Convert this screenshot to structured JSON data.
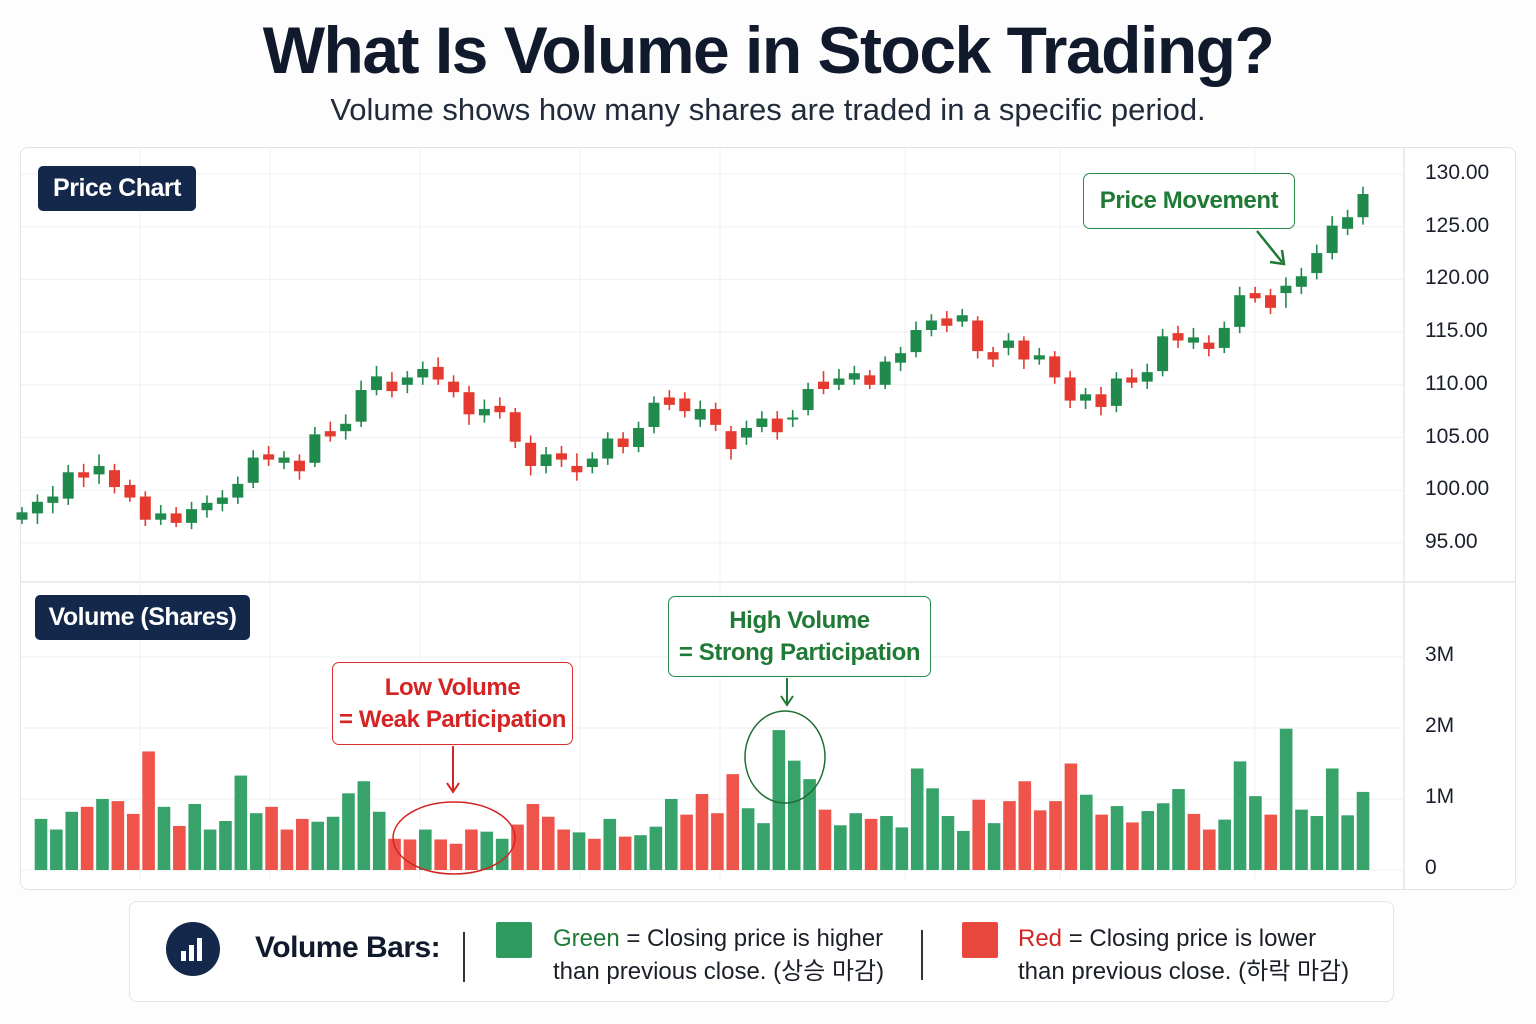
{
  "header": {
    "title": "What Is Volume in Stock Trading?",
    "subtitle": "Volume shows how many shares are traded in a specific period."
  },
  "colors": {
    "up": "#1f8a4c",
    "down": "#e53a30",
    "up_volume": "#37a26a",
    "down_volume": "#ee544a",
    "label_bg": "#13284b"
  },
  "chart_data": [
    {
      "type": "candlestick",
      "label": "Price Chart",
      "yticks": [
        "130.00",
        "125.00",
        "120.00",
        "115.00",
        "110.00",
        "105.00",
        "100.00",
        "95.00"
      ],
      "ylim": [
        93,
        131
      ],
      "grid": true,
      "annotation": "Price Movement",
      "ohlc": [
        [
          97.2,
          98.4,
          96.8,
          97.9
        ],
        [
          97.8,
          99.6,
          96.8,
          98.9
        ],
        [
          98.8,
          100.4,
          97.8,
          99.4
        ],
        [
          99.2,
          102.4,
          98.6,
          101.7
        ],
        [
          101.7,
          102.5,
          100.3,
          101.2
        ],
        [
          101.5,
          103.4,
          100.6,
          102.3
        ],
        [
          101.9,
          102.5,
          99.7,
          100.3
        ],
        [
          100.5,
          101.0,
          98.9,
          99.3
        ],
        [
          99.4,
          99.9,
          96.6,
          97.2
        ],
        [
          97.2,
          98.6,
          96.7,
          97.8
        ],
        [
          97.8,
          98.4,
          96.5,
          96.9
        ],
        [
          96.9,
          98.9,
          96.3,
          98.2
        ],
        [
          98.1,
          99.5,
          97.4,
          98.8
        ],
        [
          98.7,
          100.0,
          98.0,
          99.3
        ],
        [
          99.3,
          101.3,
          98.7,
          100.6
        ],
        [
          100.7,
          103.8,
          100.2,
          103.1
        ],
        [
          103.4,
          104.2,
          102.3,
          102.9
        ],
        [
          102.6,
          103.7,
          102.0,
          103.1
        ],
        [
          102.8,
          103.4,
          101.0,
          101.8
        ],
        [
          102.6,
          106.0,
          102.2,
          105.3
        ],
        [
          105.6,
          106.5,
          104.6,
          105.1
        ],
        [
          105.6,
          107.2,
          104.8,
          106.3
        ],
        [
          106.5,
          110.4,
          106.0,
          109.5
        ],
        [
          109.5,
          111.8,
          109.0,
          110.8
        ],
        [
          110.3,
          111.2,
          108.8,
          109.4
        ],
        [
          110.0,
          111.3,
          109.2,
          110.7
        ],
        [
          110.7,
          112.2,
          110.0,
          111.5
        ],
        [
          111.7,
          112.6,
          110.0,
          110.5
        ],
        [
          110.3,
          110.9,
          108.8,
          109.3
        ],
        [
          109.3,
          109.9,
          106.2,
          107.2
        ],
        [
          107.1,
          108.6,
          106.4,
          107.7
        ],
        [
          108.0,
          108.8,
          106.8,
          107.4
        ],
        [
          107.4,
          107.8,
          104.0,
          104.6
        ],
        [
          104.5,
          105.2,
          101.4,
          102.3
        ],
        [
          102.3,
          104.1,
          101.6,
          103.4
        ],
        [
          103.5,
          104.2,
          102.2,
          102.9
        ],
        [
          102.3,
          103.5,
          100.9,
          101.7
        ],
        [
          102.2,
          103.6,
          101.6,
          103.0
        ],
        [
          103.0,
          105.5,
          102.4,
          104.9
        ],
        [
          104.9,
          105.5,
          103.5,
          104.1
        ],
        [
          104.1,
          106.5,
          103.6,
          105.9
        ],
        [
          106.0,
          108.9,
          105.4,
          108.3
        ],
        [
          108.8,
          109.5,
          107.6,
          108.1
        ],
        [
          108.7,
          109.3,
          106.9,
          107.5
        ],
        [
          106.7,
          108.5,
          106.0,
          107.7
        ],
        [
          107.7,
          108.3,
          105.6,
          106.2
        ],
        [
          105.6,
          106.1,
          102.9,
          103.9
        ],
        [
          105.0,
          106.6,
          104.3,
          105.9
        ],
        [
          106.0,
          107.5,
          105.5,
          106.8
        ],
        [
          106.8,
          107.5,
          104.8,
          105.5
        ],
        [
          106.7,
          107.6,
          106.0,
          106.9
        ],
        [
          107.6,
          110.2,
          107.1,
          109.6
        ],
        [
          110.3,
          111.3,
          109.1,
          109.6
        ],
        [
          110.0,
          111.5,
          109.5,
          110.6
        ],
        [
          110.5,
          111.8,
          110.0,
          111.1
        ],
        [
          110.9,
          111.4,
          109.6,
          110.0
        ],
        [
          110.0,
          112.7,
          109.6,
          112.2
        ],
        [
          112.1,
          113.6,
          111.3,
          113.0
        ],
        [
          113.1,
          116.0,
          112.6,
          115.2
        ],
        [
          115.2,
          116.7,
          114.6,
          116.1
        ],
        [
          116.3,
          117.0,
          115.0,
          115.6
        ],
        [
          116.0,
          117.2,
          115.5,
          116.6
        ],
        [
          116.1,
          116.5,
          112.5,
          113.2
        ],
        [
          113.1,
          113.6,
          111.7,
          112.4
        ],
        [
          113.5,
          114.9,
          112.8,
          114.2
        ],
        [
          114.2,
          114.6,
          111.5,
          112.4
        ],
        [
          112.4,
          113.5,
          111.9,
          112.8
        ],
        [
          112.7,
          113.2,
          110.1,
          110.7
        ],
        [
          110.7,
          111.3,
          107.8,
          108.5
        ],
        [
          108.5,
          109.7,
          107.7,
          109.1
        ],
        [
          109.1,
          109.8,
          107.1,
          107.9
        ],
        [
          108.0,
          111.2,
          107.4,
          110.6
        ],
        [
          110.7,
          111.5,
          109.7,
          110.2
        ],
        [
          110.3,
          112.0,
          109.6,
          111.2
        ],
        [
          111.3,
          115.3,
          110.8,
          114.6
        ],
        [
          114.9,
          115.6,
          113.5,
          114.2
        ],
        [
          114.0,
          115.4,
          113.4,
          114.5
        ],
        [
          114.0,
          114.7,
          112.7,
          113.4
        ],
        [
          113.5,
          116.0,
          113.0,
          115.4
        ],
        [
          115.5,
          119.3,
          114.9,
          118.5
        ],
        [
          118.7,
          119.3,
          117.8,
          118.2
        ],
        [
          118.5,
          119.1,
          116.7,
          117.3
        ],
        [
          118.7,
          120.2,
          117.3,
          119.4
        ],
        [
          119.3,
          121.1,
          118.6,
          120.3
        ],
        [
          120.6,
          123.3,
          120.0,
          122.5
        ],
        [
          122.5,
          126.0,
          121.9,
          125.1
        ],
        [
          124.8,
          126.6,
          124.2,
          125.9
        ],
        [
          125.9,
          128.8,
          125.2,
          128.1
        ]
      ]
    },
    {
      "type": "bar",
      "label": "Volume (Shares)",
      "yticks": [
        "3M",
        "2M",
        "1M",
        "0"
      ],
      "ytick_values": [
        3,
        2,
        1,
        0
      ],
      "unit": "millions of shares",
      "ylim": [
        0,
        3.3
      ],
      "values": [
        0.72,
        0.57,
        0.82,
        0.89,
        1.0,
        0.97,
        0.79,
        1.67,
        0.89,
        0.62,
        0.93,
        0.57,
        0.69,
        1.33,
        0.8,
        0.89,
        0.57,
        0.72,
        0.68,
        0.75,
        1.08,
        1.25,
        0.82,
        0.44,
        0.43,
        0.57,
        0.43,
        0.37,
        0.57,
        0.54,
        0.44,
        0.64,
        0.93,
        0.75,
        0.57,
        0.53,
        0.44,
        0.72,
        0.47,
        0.49,
        0.61,
        1.0,
        0.78,
        1.07,
        0.8,
        1.35,
        0.87,
        0.66,
        1.97,
        1.54,
        1.28,
        0.85,
        0.63,
        0.8,
        0.72,
        0.76,
        0.6,
        1.43,
        1.15,
        0.76,
        0.55,
        0.99,
        0.66,
        0.97,
        1.25,
        0.84,
        0.97,
        1.5,
        1.06,
        0.78,
        0.9,
        0.67,
        0.83,
        0.94,
        1.14,
        0.79,
        0.57,
        0.71,
        1.53,
        1.04,
        0.78,
        1.99,
        0.85,
        0.76,
        1.43,
        0.77,
        1.1
      ],
      "up": [
        1,
        1,
        1,
        0,
        1,
        0,
        0,
        0,
        1,
        0,
        1,
        1,
        1,
        1,
        1,
        0,
        0,
        0,
        1,
        1,
        1,
        1,
        1,
        0,
        0,
        1,
        0,
        0,
        0,
        1,
        1,
        0,
        0,
        0,
        0,
        1,
        0,
        1,
        0,
        1,
        1,
        1,
        0,
        0,
        0,
        0,
        1,
        1,
        1,
        1,
        1,
        0,
        1,
        1,
        0,
        1,
        1,
        1,
        1,
        1,
        1,
        0,
        1,
        0,
        0,
        0,
        0,
        0,
        1,
        0,
        1,
        0,
        1,
        1,
        1,
        0,
        0,
        1,
        1,
        1,
        0,
        1,
        1,
        1,
        1,
        1,
        1
      ],
      "annotations": {
        "low": {
          "line1": "Low Volume",
          "line2": "= Weak Participation"
        },
        "high": {
          "line1": "High Volume",
          "line2": "= Strong Participation"
        }
      }
    }
  ],
  "legend": {
    "title": "Volume Bars:",
    "icon": "bar-chart-icon",
    "green": {
      "word": "Green",
      "line1": " = Closing price is higher",
      "line2": "than previous close. (상승 마감)"
    },
    "red": {
      "word": "Red",
      "line1": " = Closing price is lower",
      "line2": "than previous close. (하락 마감)"
    }
  }
}
